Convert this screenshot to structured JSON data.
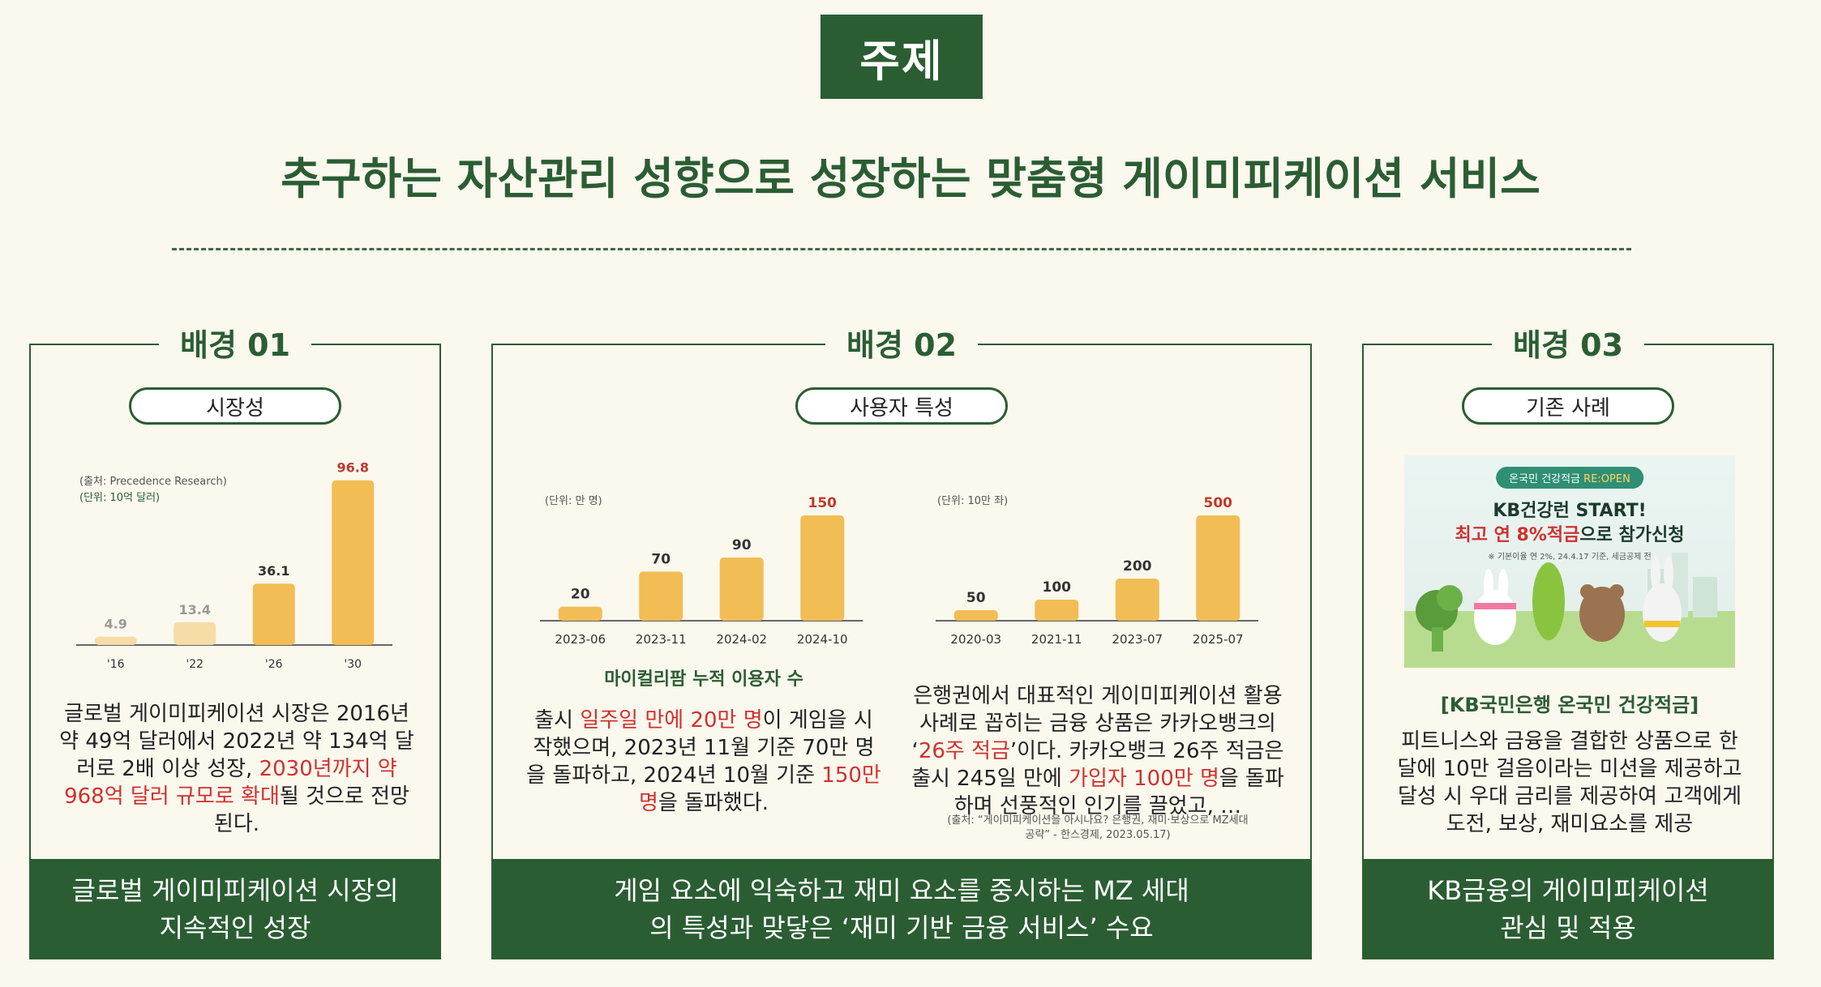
{
  "badge": "주제",
  "headline": "추구하는 자산관리 성향으로 성장하는 맞춤형 게이미피케이션 서비스",
  "panels": {
    "p1": {
      "title": "배경 01",
      "pill": "시장성",
      "source1": "(출처: Precedence Research)",
      "source2": "(단위: 10억 달러)",
      "desc": [
        {
          "t": "글로벌 게이미피케이션 시장은 2016년 약 49억 달러에서 2022년 약 134억 달러로 2배 이상 성장, ",
          "red": false
        },
        {
          "t": "2030년까지 약 968억 달러 규모로 확대",
          "red": true
        },
        {
          "t": "될 것으로 전망된다.",
          "red": false
        }
      ],
      "footer1": "글로벌 게이미피케이션 시장의",
      "footer2": "지속적인 성장"
    },
    "p2": {
      "title": "배경 02",
      "pill": "사용자 특성",
      "unit1": "(단위: 만 명)",
      "unit2": "(단위: 10만 좌)",
      "caption1": "마이컬리팜 누적 이용자 수",
      "desc1": [
        {
          "t": "출시 ",
          "red": false
        },
        {
          "t": "일주일 만에 20만 명",
          "red": true
        },
        {
          "t": "이 게임을 시작했으며, 2023년 11월 기준 70만 명을 돌파하고, 2024년 10월 기준 ",
          "red": false
        },
        {
          "t": "150만 명",
          "red": true
        },
        {
          "t": "을 돌파했다.",
          "red": false
        }
      ],
      "desc2": [
        {
          "t": "은행권에서 대표적인 게이미피케이션 활용 사례로 꼽히는 금융 상품은 카카오뱅크의 ‘",
          "red": false
        },
        {
          "t": "26주 적금",
          "red": true
        },
        {
          "t": "’이다. 카카오뱅크 26주 적금은 출시 245일 만에 ",
          "red": false
        },
        {
          "t": "가입자 100만 명",
          "red": true
        },
        {
          "t": "을 돌파하며 선풍적인 인기를 끌었고, …",
          "red": false
        }
      ],
      "source3a": "(출처: “게이미피케이션을 아시나요? 은행권, 재미·보상으로 MZ세대",
      "source3b": "공략” - 한스경제, 2023.05.17)",
      "footer1": "게임 요소에 익숙하고 재미 요소를 중시하는 MZ 세대",
      "footer2": "의 특성과 맞닿은 ‘재미 기반 금융 서비스’ 수요"
    },
    "p3": {
      "title": "배경 03",
      "pill": "기존 사례",
      "promo_tag": "온국민 건강적금",
      "promo_tag_re": "RE:OPEN",
      "promo_line1": "KB건강런 START!",
      "promo_line2_red": "최고 연 8%적금",
      "promo_line2": "으로 참가신청",
      "promo_note": "※ 기본이율 연 2%, 24.4.17 기준, 세금공제 전",
      "case_title": "[KB국민은행 온국민 건강적금]",
      "desc": "피트니스와 금융을 결합한 상품으로 한 달에 10만 걸음이라는 미션을 제공하고 달성 시 우대 금리를 제공하여 고객에게 도전, 보상, 재미요소를 제공",
      "footer1": "KB금융의 게이미피케이션",
      "footer2": "관심 및 적용"
    }
  },
  "chart_data": [
    {
      "type": "bar",
      "categories": [
        "'16",
        "'22",
        "'26",
        "'30"
      ],
      "values": [
        4.9,
        13.4,
        36.1,
        96.8
      ],
      "ylim": [
        0,
        100
      ],
      "unit": "(단위: 10억 달러)",
      "colors": [
        "#f6dca6",
        "#f6dca6",
        "#f2bd55",
        "#f2bd55"
      ],
      "label_colors": [
        "#999999",
        "#999999",
        "#333333",
        "#c0392b"
      ]
    },
    {
      "type": "bar",
      "categories": [
        "2023-06",
        "2023-11",
        "2024-02",
        "2024-10"
      ],
      "values": [
        20,
        70,
        90,
        150
      ],
      "ylim": [
        0,
        150
      ],
      "unit": "(단위: 만 명)",
      "colors": [
        "#f2bd55",
        "#f2bd55",
        "#f2bd55",
        "#f2bd55"
      ],
      "label_colors": [
        "#333333",
        "#333333",
        "#333333",
        "#c0392b"
      ]
    },
    {
      "type": "bar",
      "categories": [
        "2020-03",
        "2021-11",
        "2023-07",
        "2025-07"
      ],
      "values": [
        50,
        100,
        200,
        500
      ],
      "ylim": [
        0,
        500
      ],
      "unit": "(단위: 10만 좌)",
      "colors": [
        "#f2bd55",
        "#f2bd55",
        "#f2bd55",
        "#f2bd55"
      ],
      "label_colors": [
        "#333333",
        "#333333",
        "#333333",
        "#c0392b"
      ]
    }
  ]
}
